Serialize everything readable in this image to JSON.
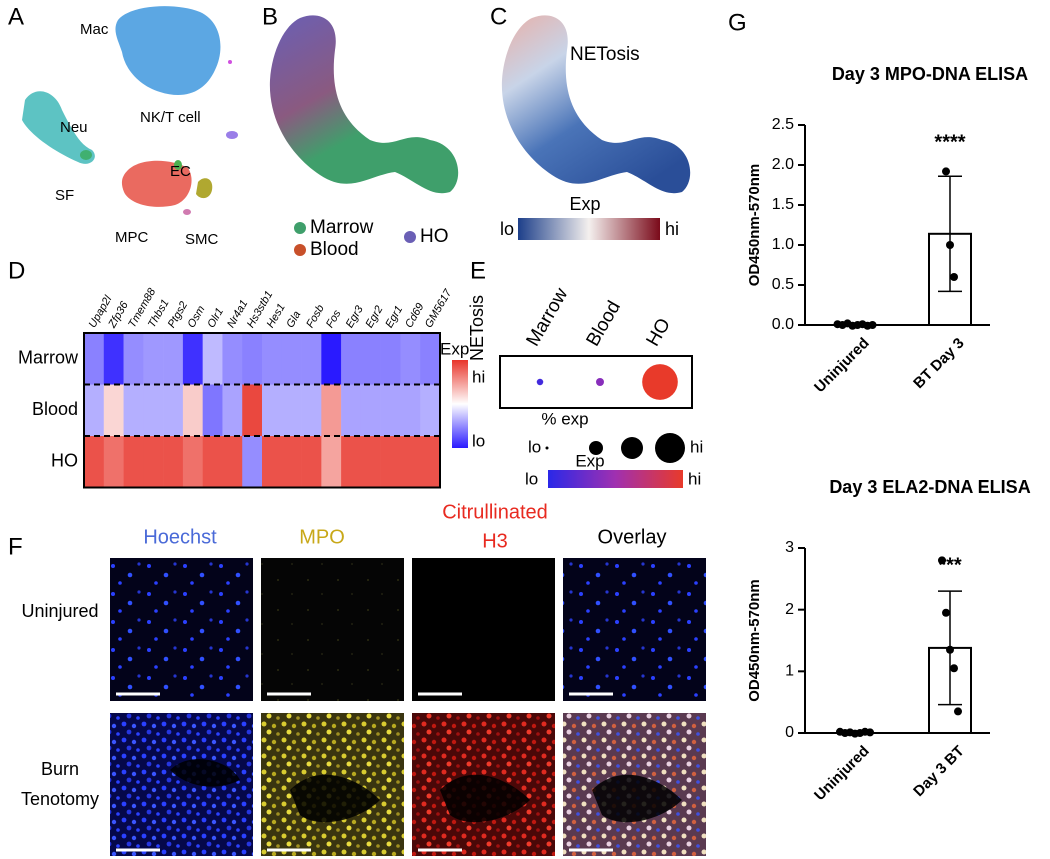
{
  "panel_labels": [
    "A",
    "B",
    "C",
    "D",
    "E",
    "F",
    "G"
  ],
  "umap_a": {
    "clusters": [
      "Mac",
      "Neu",
      "NK/T cell",
      "SF",
      "EC",
      "MPC",
      "SMC"
    ]
  },
  "umap_b": {
    "legend": [
      {
        "name": "Marrow",
        "color": "#3f9f6b"
      },
      {
        "name": "Blood",
        "color": "#c8502a"
      },
      {
        "name": "HO",
        "color": "#6a5fb5"
      }
    ]
  },
  "umap_c": {
    "title": "NETosis",
    "scale_title": "Exp",
    "scale_low": "lo",
    "scale_high": "hi"
  },
  "heatmap": {
    "genes": [
      "Upap2l",
      "Zfp36",
      "Tmem88",
      "Thbs1",
      "Ptgs2",
      "Osm",
      "Olr1",
      "Nr4a1",
      "Hs3stb1",
      "Hes1",
      "Gla",
      "Fosb",
      "Fos",
      "Egr3",
      "Egr2",
      "Egr1",
      "Cd69",
      "GM5617"
    ],
    "rows": [
      "Marrow",
      "Blood",
      "HO"
    ],
    "cells": [
      [
        -0.55,
        -0.9,
        -0.5,
        -0.45,
        -0.45,
        -0.9,
        -0.3,
        -0.5,
        -0.55,
        -0.5,
        -0.5,
        -0.5,
        -1,
        -0.55,
        -0.55,
        -0.55,
        -0.5,
        -0.55
      ],
      [
        -0.35,
        0.2,
        -0.35,
        -0.35,
        -0.35,
        0.25,
        -0.6,
        -0.4,
        0.9,
        -0.35,
        -0.35,
        -0.35,
        0.5,
        -0.4,
        -0.4,
        -0.4,
        -0.4,
        -0.35
      ],
      [
        0.85,
        0.7,
        0.85,
        0.85,
        0.85,
        0.7,
        0.85,
        0.85,
        -0.5,
        0.85,
        0.85,
        0.85,
        0.45,
        0.85,
        0.85,
        0.85,
        0.85,
        0.85
      ]
    ],
    "scale_lim": [
      -1,
      1
    ],
    "scale_title": "Exp",
    "scale_high": "hi",
    "scale_low": "lo"
  },
  "dotplot": {
    "row": "NETosis",
    "columns": [
      "Marrow",
      "Blood",
      "HO"
    ],
    "pct": [
      2,
      3,
      60
    ],
    "exp": [
      0.1,
      0.4,
      1
    ],
    "exp_lim": [
      0,
      1
    ],
    "size_title": "% exp",
    "size_low": "lo",
    "size_high": "hi",
    "color_title": "Exp",
    "color_low": "lo",
    "color_high": "hi"
  },
  "images": {
    "columns": [
      "Hoechst",
      "MPO",
      "Citrullinated",
      "H3",
      "Overlay"
    ],
    "rows": [
      "Uninjured",
      "Burn",
      "Tenotomy"
    ]
  },
  "chart_data": [
    {
      "type": "bar",
      "title": "Day 3 MPO-DNA ELISA",
      "y_label": "OD450nm-570nm",
      "categories": [
        "Uninjured",
        "BT Day 3"
      ],
      "values": [
        0.0,
        1.14
      ],
      "errors": [
        0.01,
        0.72
      ],
      "points": [
        [
          0.01,
          0.0,
          0.02,
          -0.01,
          0.0,
          0.01,
          -0.01,
          0.0
        ],
        [
          1.92,
          1.0,
          0.6
        ]
      ],
      "annotation": "****",
      "color": "#ffffff",
      "ylim": [
        0,
        2.5
      ],
      "yticks": [
        {
          "value": 0,
          "label": "0.0"
        },
        0.5,
        {
          "value": 1,
          "label": "1.0"
        },
        1.5,
        {
          "value": 2,
          "label": "2.0"
        },
        2.5
      ]
    },
    {
      "type": "bar",
      "title": "Day 3 ELA2-DNA ELISA",
      "y_label": "OD450nm-570nm",
      "categories": [
        "Uninjured",
        "Day 3 BT"
      ],
      "values": [
        0.0,
        1.38
      ],
      "errors": [
        0.02,
        0.92
      ],
      "points": [
        [
          0.02,
          0.0,
          0.01,
          -0.01,
          0.0,
          0.02,
          0.01
        ],
        [
          2.8,
          1.95,
          1.35,
          1.05,
          0.35
        ]
      ],
      "annotation": "***",
      "color": "#ffffff",
      "ylim": [
        0,
        3
      ],
      "yticks": [
        0,
        1,
        2,
        3
      ]
    }
  ]
}
